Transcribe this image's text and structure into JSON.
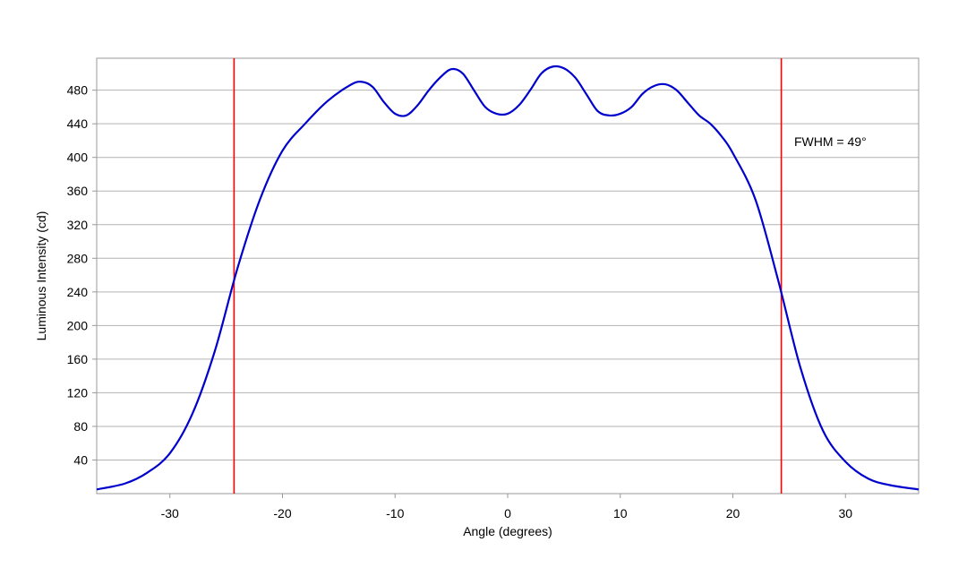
{
  "chart_data": {
    "type": "line",
    "title": "",
    "xlabel": "Angle (degrees)",
    "ylabel": "Luminous Intensity (cd)",
    "xlim": [
      -36.5,
      36.5
    ],
    "ylim": [
      0,
      518
    ],
    "xticks": [
      -30,
      -20,
      -10,
      0,
      10,
      20,
      30
    ],
    "yticks": [
      40,
      80,
      120,
      160,
      200,
      240,
      280,
      320,
      360,
      400,
      440,
      480
    ],
    "grid": true,
    "series": [
      {
        "color": "#0000cc",
        "x": [
          -36.5,
          -34,
          -32,
          -30,
          -28,
          -26,
          -24,
          -22,
          -20,
          -18,
          -16,
          -14,
          -13,
          -12,
          -11,
          -10,
          -9,
          -8,
          -7,
          -6,
          -5,
          -4,
          -3,
          -2,
          -1,
          0,
          1,
          2,
          3,
          4,
          5,
          6,
          7,
          8,
          9,
          10,
          11,
          12,
          13,
          14,
          15,
          16,
          17,
          18,
          19,
          20,
          22,
          24,
          26,
          28,
          30,
          32,
          34,
          36.5
        ],
        "y": [
          5,
          12,
          25,
          48,
          95,
          170,
          268,
          350,
          408,
          440,
          467,
          486,
          490,
          484,
          466,
          452,
          450,
          462,
          480,
          495,
          505,
          500,
          480,
          460,
          452,
          452,
          462,
          480,
          500,
          508,
          506,
          495,
          475,
          455,
          450,
          452,
          460,
          476,
          485,
          487,
          480,
          465,
          450,
          440,
          425,
          405,
          350,
          255,
          150,
          75,
          38,
          18,
          10,
          5
        ]
      }
    ],
    "vlines": [
      -24.3,
      24.3
    ],
    "vline_color": "#ff0000",
    "annotation": "FWHM = 49°"
  }
}
